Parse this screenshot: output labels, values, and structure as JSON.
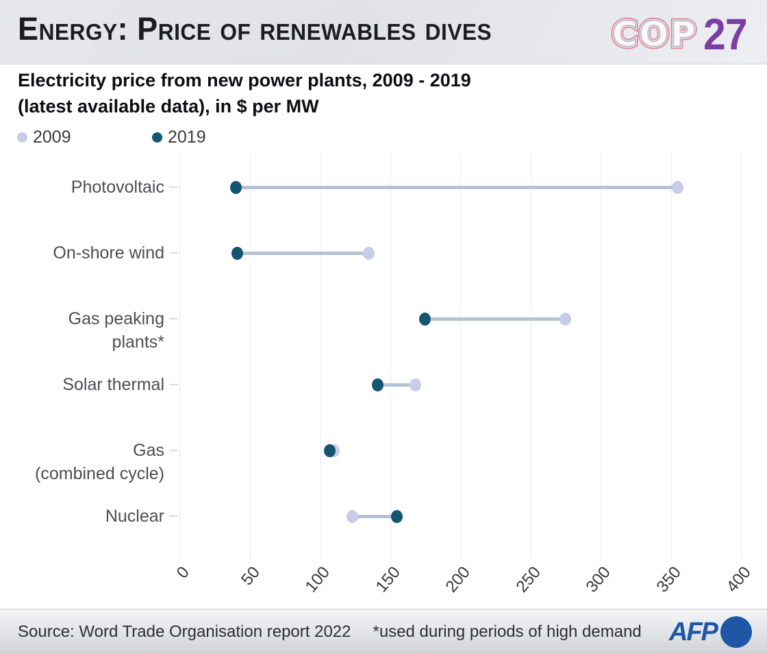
{
  "header": {
    "title": "Energy: Price of renewables dives",
    "cop_logo": {
      "cop": "COP",
      "year": "27"
    }
  },
  "subtitle": {
    "line1": "Electricity price from new power plants, 2009 - 2019",
    "line2": "(latest available data), in $ per MW"
  },
  "colors": {
    "series_2009": "#c7cde9",
    "series_2019": "#135670",
    "connector": "#b7c1d6",
    "gridline": "#ebebee",
    "cop_purple": "#7b3fa3",
    "afp_blue": "#1d57a5"
  },
  "chart_data": {
    "type": "scatter",
    "variant": "dumbbell-dot-range",
    "title": "Electricity price from new power plants, 2009 - 2019 (latest available data), in $ per MW",
    "categories": [
      "Photovoltaic",
      "On-shore wind",
      "Gas peaking plants*",
      "Solar thermal",
      "Gas (combined cycle)",
      "Nuclear"
    ],
    "category_label_lines": [
      [
        "Photovoltaic"
      ],
      [
        "On-shore wind"
      ],
      [
        "Gas peaking",
        "plants*"
      ],
      [
        "Solar thermal"
      ],
      [
        "Gas",
        "(combined cycle)"
      ],
      [
        "Nuclear"
      ]
    ],
    "series": [
      {
        "name": "2009",
        "color": "#c7cde9",
        "values": [
          355,
          135,
          275,
          168,
          110,
          123
        ]
      },
      {
        "name": "2019",
        "color": "#135670",
        "values": [
          40,
          41,
          175,
          141,
          107,
          155
        ]
      }
    ],
    "xlabel": "$ per MW",
    "ylabel": "",
    "xlim": [
      0,
      400
    ],
    "x_ticks": [
      0,
      50,
      100,
      150,
      200,
      250,
      300,
      350,
      400
    ],
    "grid": "vertical",
    "legend_position": "top-left"
  },
  "footer": {
    "source": "Source: Word Trade Organisation report 2022",
    "note": "*used during periods of high demand",
    "afp": "AFP"
  }
}
